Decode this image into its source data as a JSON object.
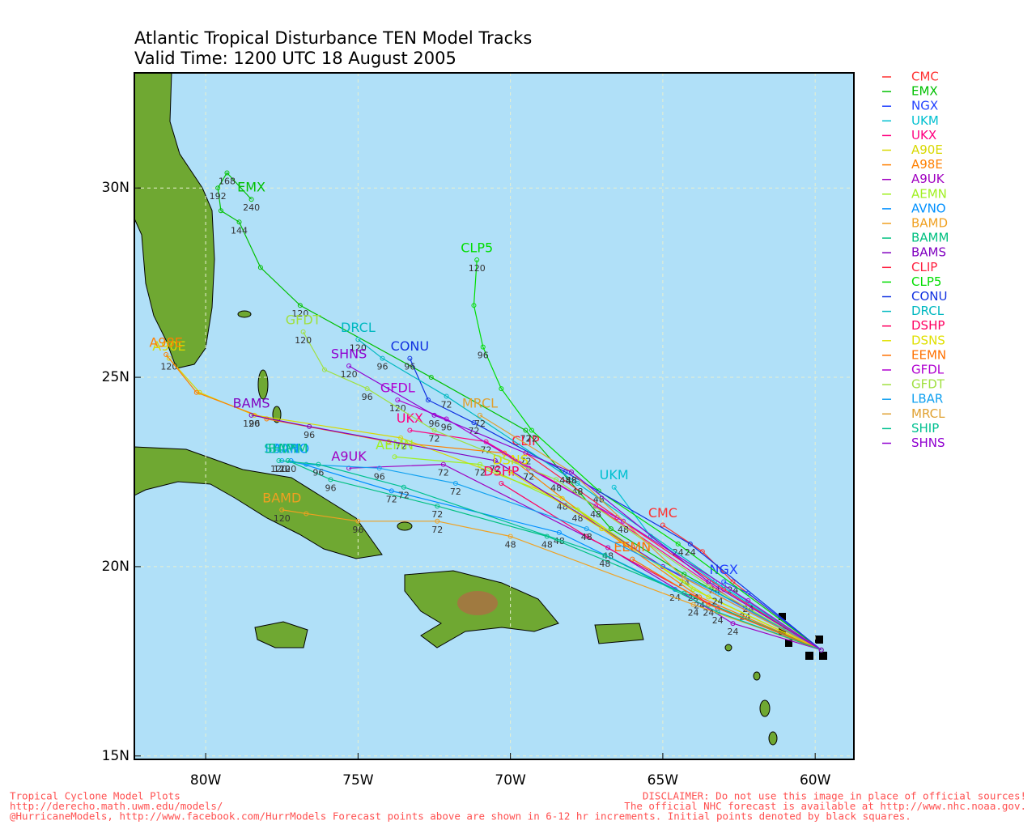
{
  "chart_data": {
    "type": "track",
    "title": "Atlantic Tropical Disturbance TEN Model Tracks",
    "subtitle": "Valid Time: 1200 UTC 18 August 2005",
    "xlim": [
      -82.34,
      -58.73
    ],
    "ylim": [
      14.91,
      33.04
    ],
    "xticks": [
      {
        "value": -80,
        "label": "80W"
      },
      {
        "value": -75,
        "label": "75W"
      },
      {
        "value": -70,
        "label": "70W"
      },
      {
        "value": -65,
        "label": "65W"
      },
      {
        "value": -60,
        "label": "60W"
      }
    ],
    "yticks": [
      {
        "value": 15,
        "label": "15N"
      },
      {
        "value": 20,
        "label": "20N"
      },
      {
        "value": 25,
        "label": "25N"
      },
      {
        "value": 30,
        "label": "30N"
      }
    ],
    "grid": true,
    "series": [
      {
        "name": "CMC",
        "color": "#ff3030",
        "x": [
          -59.8,
          -62.7,
          -63.7,
          -65.0
        ],
        "values": [
          17.8,
          19.6,
          20.4,
          21.1
        ],
        "hours": [
          null,
          24,
          null,
          null
        ]
      },
      {
        "name": "EMX",
        "color": "#00c000",
        "x": [
          -59.8,
          -64.3,
          -66.7,
          -69.5,
          -72.6,
          -76.9,
          -78.2,
          -78.9,
          -79.5,
          -79.6,
          -79.3,
          -78.5
        ],
        "values": [
          17.8,
          19.8,
          21.0,
          23.6,
          25.0,
          26.9,
          27.9,
          29.1,
          29.4,
          30.0,
          30.4,
          29.7
        ],
        "hours": [
          null,
          24,
          null,
          72,
          null,
          120,
          null,
          144,
          null,
          192,
          168,
          240
        ]
      },
      {
        "name": "NGX",
        "color": "#2040ff",
        "x": [
          -59.8,
          -62.2,
          -63.0
        ],
        "values": [
          17.8,
          19.3,
          19.6
        ],
        "hours": [
          null,
          null,
          null
        ]
      },
      {
        "name": "UKM",
        "color": "#00c0d0",
        "x": [
          -59.8,
          -63.3,
          -65.4,
          -66.6
        ],
        "values": [
          17.8,
          19.6,
          20.8,
          22.1
        ],
        "hours": [
          null,
          24,
          null,
          null
        ]
      },
      {
        "name": "UKX",
        "color": "#ff0080",
        "x": [
          -59.8,
          -62.3,
          -67.2,
          -70.8,
          -73.3
        ],
        "values": [
          17.8,
          18.9,
          21.6,
          23.3,
          23.6
        ],
        "hours": [
          null,
          24,
          48,
          72,
          null
        ]
      },
      {
        "name": "A90E",
        "color": "#d8d800",
        "x": [
          -59.8,
          -64.0,
          -68.3,
          -73.6,
          -78.4,
          -80.2,
          -81.2
        ],
        "values": [
          17.8,
          19.4,
          21.8,
          23.4,
          24.0,
          24.6,
          25.5
        ],
        "hours": [
          null,
          null,
          48,
          72,
          96,
          null,
          120
        ]
      },
      {
        "name": "A98E",
        "color": "#ff8000",
        "x": [
          -59.8,
          -63.8,
          -67.0,
          -70.2,
          -74.0,
          -78.0,
          -80.3,
          -81.3
        ],
        "values": [
          17.8,
          19.2,
          21.0,
          23.0,
          23.3,
          23.9,
          24.6,
          25.6
        ],
        "hours": [
          null,
          24,
          null,
          null,
          null,
          null,
          null,
          null
        ]
      },
      {
        "name": "A9UK",
        "color": "#a000c0",
        "x": [
          -59.8,
          -62.7,
          -66.8,
          -72.2,
          -75.3
        ],
        "values": [
          17.8,
          18.5,
          20.5,
          22.7,
          22.6
        ],
        "hours": [
          null,
          24,
          48,
          72,
          null
        ]
      },
      {
        "name": "AEMN",
        "color": "#a0f020",
        "x": [
          -59.8,
          -64.0,
          -67.8,
          -71.0,
          -73.8
        ],
        "values": [
          17.8,
          19.4,
          21.5,
          22.7,
          22.9
        ],
        "hours": [
          null,
          24,
          48,
          72,
          null
        ]
      },
      {
        "name": "AVNO",
        "color": "#0090ff",
        "x": [
          -59.8,
          -64.6,
          -68.4,
          -73.9,
          -77.2
        ],
        "values": [
          17.8,
          19.4,
          20.9,
          22.0,
          22.8
        ],
        "hours": [
          null,
          24,
          48,
          72,
          null
        ]
      },
      {
        "name": "BAMD",
        "color": "#f0a020",
        "x": [
          -59.8,
          -64.0,
          -70.0,
          -72.4,
          -75.0,
          -76.7,
          -77.5
        ],
        "values": [
          17.8,
          19.0,
          20.8,
          21.2,
          21.2,
          21.4,
          21.5
        ],
        "hours": [
          null,
          24,
          48,
          72,
          96,
          null,
          120
        ]
      },
      {
        "name": "BAMM",
        "color": "#00c080",
        "x": [
          -59.8,
          -64.3,
          -68.8,
          -72.4,
          -75.9,
          -77.3
        ],
        "values": [
          17.8,
          19.3,
          20.8,
          21.6,
          22.3,
          22.8
        ],
        "hours": [
          null,
          null,
          48,
          72,
          96,
          120
        ]
      },
      {
        "name": "BAMS",
        "color": "#8000c0",
        "x": [
          -59.8,
          -65.0,
          -70.5,
          -76.6,
          -78.5
        ],
        "values": [
          17.8,
          20.0,
          22.8,
          23.7,
          24.0
        ],
        "hours": [
          null,
          null,
          72,
          96,
          120
        ]
      },
      {
        "name": "CLIP",
        "color": "#ff2040",
        "x": [
          -59.8,
          -63.0,
          -66.5,
          -69.5
        ],
        "values": [
          17.8,
          19.4,
          21.3,
          23.0
        ],
        "hours": [
          null,
          null,
          null,
          72
        ]
      },
      {
        "name": "CLP5",
        "color": "#00dd00",
        "x": [
          -59.8,
          -64.5,
          -67.1,
          -69.3,
          -70.3,
          -70.9,
          -71.2,
          -71.1
        ],
        "values": [
          17.8,
          20.6,
          22.0,
          23.6,
          24.7,
          25.8,
          26.9,
          28.1
        ],
        "hours": [
          null,
          24,
          48,
          72,
          null,
          96,
          null,
          120
        ]
      },
      {
        "name": "CONU",
        "color": "#1030e0",
        "x": [
          -59.8,
          -64.1,
          -68.2,
          -71.2,
          -72.7,
          -73.3
        ],
        "values": [
          17.8,
          20.6,
          22.5,
          23.8,
          24.4,
          25.5
        ],
        "hours": [
          null,
          24,
          48,
          72,
          null,
          96
        ]
      },
      {
        "name": "DRCL",
        "color": "#00b8c0",
        "x": [
          -59.8,
          -63.0,
          -67.8,
          -72.1,
          -74.2,
          -75.0
        ],
        "values": [
          17.8,
          19.5,
          22.2,
          24.5,
          25.5,
          26.0
        ],
        "hours": [
          null,
          null,
          48,
          72,
          96,
          120
        ]
      },
      {
        "name": "DSHP",
        "color": "#ff0060",
        "x": [
          -59.8,
          -63.2,
          -67.5,
          -70.3
        ],
        "values": [
          17.8,
          18.9,
          20.8,
          22.2
        ],
        "hours": [
          null,
          null,
          null,
          null
        ]
      },
      {
        "name": "DSNS",
        "color": "#e0e000",
        "x": [
          -59.8,
          -63.5,
          -67.0,
          -70.0
        ],
        "values": [
          17.8,
          19.2,
          21.0,
          22.5
        ],
        "hours": [
          null,
          null,
          null,
          null
        ]
      },
      {
        "name": "EEMN",
        "color": "#ff7000",
        "x": [
          -59.8,
          -63.5,
          -66.0
        ],
        "values": [
          17.8,
          19.0,
          20.2
        ],
        "hours": [
          null,
          24,
          null
        ]
      },
      {
        "name": "GFDL",
        "color": "#b000d0",
        "x": [
          -59.8,
          -62.2,
          -66.3,
          -69.4,
          -72.1,
          -73.7
        ],
        "values": [
          17.8,
          19.1,
          21.2,
          22.6,
          23.9,
          24.4
        ],
        "hours": [
          null,
          24,
          48,
          72,
          96,
          120
        ]
      },
      {
        "name": "GFDT",
        "color": "#a0e040",
        "x": [
          -59.8,
          -63.5,
          -68.5,
          -72.5,
          -74.7,
          -76.1,
          -76.8
        ],
        "values": [
          17.8,
          19.5,
          22.3,
          23.6,
          24.7,
          25.2,
          26.2
        ],
        "hours": [
          null,
          null,
          48,
          72,
          96,
          null,
          120
        ]
      },
      {
        "name": "LBAR",
        "color": "#10a0f0",
        "x": [
          -59.8,
          -63.2,
          -67.5,
          -71.8,
          -74.3,
          -76.7,
          -77.5
        ],
        "values": [
          17.8,
          19.3,
          21.0,
          22.2,
          22.6,
          22.7,
          22.8
        ],
        "hours": [
          null,
          24,
          48,
          72,
          96,
          null,
          120
        ]
      },
      {
        "name": "MRCL",
        "color": "#e0a030",
        "x": [
          -59.8,
          -64.3,
          -68.0,
          -71.0
        ],
        "values": [
          17.8,
          19.7,
          22.5,
          24.0
        ],
        "hours": [
          null,
          null,
          48,
          72
        ]
      },
      {
        "name": "SHIP",
        "color": "#00c090",
        "x": [
          -59.8,
          -63.2,
          -66.9,
          -73.5,
          -76.3,
          -77.6
        ],
        "values": [
          17.8,
          18.8,
          20.3,
          22.1,
          22.7,
          22.8
        ],
        "hours": [
          null,
          24,
          48,
          72,
          96,
          120
        ]
      },
      {
        "name": "SHNS",
        "color": "#9000d0",
        "x": [
          -59.8,
          -63.5,
          -68.0,
          -72.5,
          -75.3
        ],
        "values": [
          17.8,
          19.6,
          22.5,
          24.0,
          25.3
        ],
        "hours": [
          null,
          null,
          48,
          96,
          120
        ]
      }
    ],
    "footer_left": [
      "Tropical Cyclone Model Plots",
      "http://derecho.math.uwm.edu/models/",
      "@HurricaneModels, http://www.facebook.com/HurrModels  Forecast points above are shown in 6-12 hr increments.  Initial points denoted by black squares."
    ],
    "footer_right": [
      "DISCLAIMER: Do not use this image in place of official sources!",
      "The official NHC forecast is available at http://www.nhc.noaa.gov."
    ]
  }
}
